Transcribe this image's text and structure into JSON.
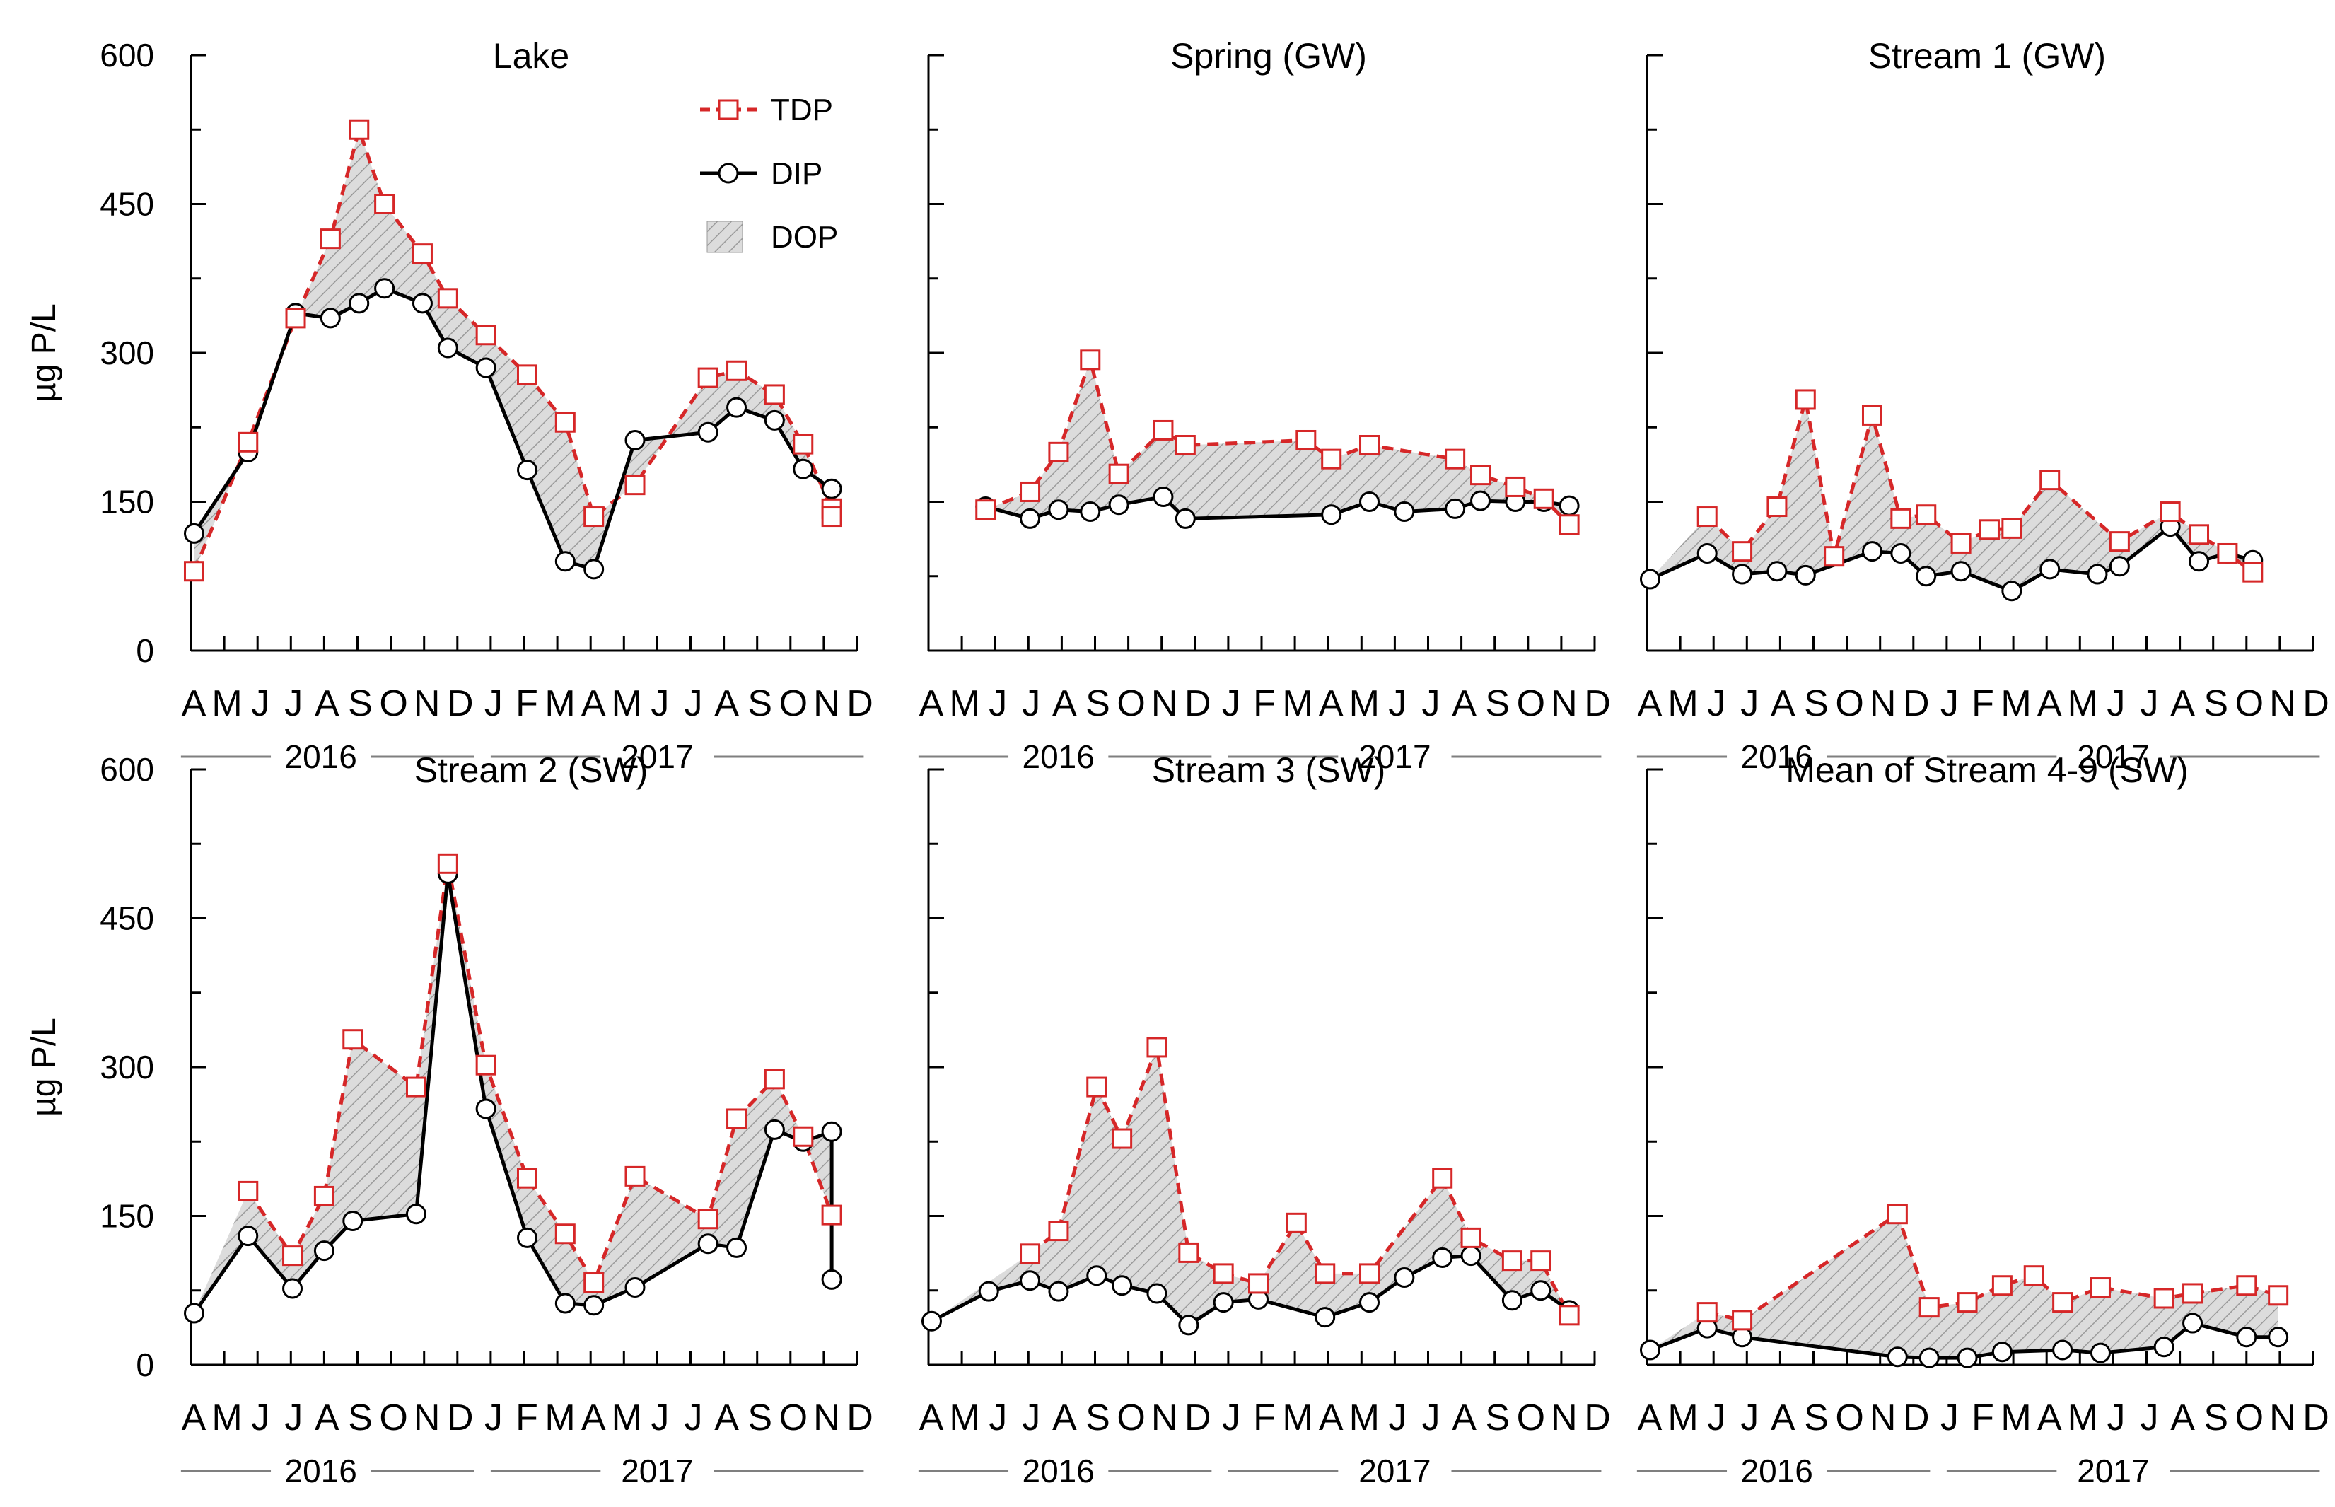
{
  "chart_data": {
    "type": "line",
    "ylabel": "µg P/L",
    "ylim": [
      0,
      600
    ],
    "yticks": [
      0,
      150,
      300,
      450,
      600
    ],
    "x_months": [
      "A",
      "M",
      "J",
      "J",
      "A",
      "S",
      "O",
      "N",
      "D",
      "J",
      "F",
      "M",
      "A",
      "M",
      "J",
      "J",
      "A",
      "S",
      "O",
      "N",
      "D"
    ],
    "x_start": "2016-04",
    "years": [
      "2016",
      "2017"
    ],
    "colors": {
      "tdp": "#d62728",
      "dip": "#000000",
      "dop_fill": "#dcdcdc",
      "dop_hatch": "#9a9a9a"
    },
    "legend": [
      {
        "key": "tdp",
        "label": "TDP"
      },
      {
        "key": "dip",
        "label": "DIP"
      },
      {
        "key": "dop",
        "label": "DOP"
      }
    ],
    "panels": [
      {
        "title": "Lake",
        "tdp": [
          [
            0.05,
            80
          ],
          [
            0.9,
            210
          ],
          [
            1.65,
            335
          ],
          [
            2.2,
            415
          ],
          [
            2.65,
            525
          ],
          [
            3.05,
            450
          ],
          [
            3.65,
            400
          ],
          [
            4.05,
            355
          ],
          [
            4.65,
            318
          ],
          [
            5.3,
            278
          ],
          [
            5.9,
            230
          ],
          [
            6.35,
            135
          ],
          [
            7.0,
            167
          ],
          [
            8.15,
            275
          ],
          [
            8.6,
            282
          ],
          [
            9.2,
            258
          ],
          [
            9.65,
            208
          ],
          [
            10.1,
            143
          ],
          [
            10.1,
            135
          ]
        ],
        "dip": [
          [
            0.05,
            118
          ],
          [
            0.9,
            200
          ],
          [
            1.65,
            340
          ],
          [
            2.2,
            335
          ],
          [
            2.65,
            350
          ],
          [
            3.05,
            365
          ],
          [
            3.65,
            350
          ],
          [
            4.05,
            305
          ],
          [
            4.65,
            285
          ],
          [
            5.3,
            182
          ],
          [
            5.9,
            90
          ],
          [
            6.35,
            82
          ],
          [
            7.0,
            212
          ],
          [
            8.15,
            220
          ],
          [
            8.6,
            245
          ],
          [
            9.2,
            232
          ],
          [
            9.65,
            183
          ],
          [
            10.1,
            163
          ]
        ]
      },
      {
        "title": "Spring (GW)",
        "tdp": [
          [
            0.9,
            142
          ],
          [
            1.6,
            160
          ],
          [
            2.05,
            200
          ],
          [
            2.55,
            293
          ],
          [
            3.0,
            178
          ],
          [
            3.7,
            222
          ],
          [
            4.05,
            207
          ],
          [
            5.95,
            212
          ],
          [
            6.35,
            193
          ],
          [
            6.95,
            207
          ],
          [
            8.3,
            193
          ],
          [
            8.7,
            177
          ],
          [
            9.25,
            165
          ],
          [
            9.7,
            153
          ],
          [
            10.1,
            127
          ]
        ],
        "dip": [
          [
            0.9,
            145
          ],
          [
            1.6,
            133
          ],
          [
            2.05,
            142
          ],
          [
            2.55,
            140
          ],
          [
            3.0,
            147
          ],
          [
            3.7,
            155
          ],
          [
            4.05,
            133
          ],
          [
            6.35,
            137
          ],
          [
            6.95,
            150
          ],
          [
            7.5,
            140
          ],
          [
            8.3,
            143
          ],
          [
            8.7,
            151
          ],
          [
            9.25,
            150
          ],
          [
            9.7,
            150
          ],
          [
            10.1,
            146
          ]
        ]
      },
      {
        "title": "Stream 1 (GW)",
        "tdp": [
          [
            0.95,
            135
          ],
          [
            1.5,
            100
          ],
          [
            2.05,
            145
          ],
          [
            2.5,
            253
          ],
          [
            2.95,
            95
          ],
          [
            3.55,
            237
          ],
          [
            4.0,
            133
          ],
          [
            4.4,
            137
          ],
          [
            4.95,
            108
          ],
          [
            5.4,
            122
          ],
          [
            5.75,
            123
          ],
          [
            6.35,
            172
          ],
          [
            7.45,
            110
          ],
          [
            8.25,
            140
          ],
          [
            8.7,
            117
          ],
          [
            9.15,
            98
          ],
          [
            9.55,
            79
          ]
        ],
        "dip": [
          [
            0.05,
            72
          ],
          [
            0.95,
            98
          ],
          [
            1.5,
            77
          ],
          [
            2.05,
            80
          ],
          [
            2.5,
            76
          ],
          [
            3.55,
            100
          ],
          [
            4.0,
            98
          ],
          [
            4.4,
            75
          ],
          [
            4.95,
            80
          ],
          [
            5.75,
            60
          ],
          [
            6.35,
            82
          ],
          [
            7.1,
            77
          ],
          [
            7.45,
            85
          ],
          [
            8.25,
            125
          ],
          [
            8.7,
            90
          ],
          [
            9.15,
            98
          ],
          [
            9.55,
            91
          ]
        ]
      },
      {
        "title": "Stream 2 (SW)",
        "tdp": [
          [
            0.9,
            175
          ],
          [
            1.6,
            110
          ],
          [
            2.1,
            170
          ],
          [
            2.55,
            328
          ],
          [
            3.55,
            280
          ],
          [
            4.05,
            505
          ],
          [
            4.65,
            302
          ],
          [
            5.3,
            188
          ],
          [
            5.9,
            132
          ],
          [
            6.35,
            83
          ],
          [
            7.0,
            190
          ],
          [
            8.15,
            147
          ],
          [
            8.6,
            248
          ],
          [
            9.2,
            288
          ],
          [
            9.65,
            230
          ],
          [
            10.1,
            151
          ]
        ],
        "dip": [
          [
            0.05,
            52
          ],
          [
            0.9,
            130
          ],
          [
            1.6,
            77
          ],
          [
            2.1,
            115
          ],
          [
            2.55,
            145
          ],
          [
            3.55,
            152
          ],
          [
            4.05,
            495
          ],
          [
            4.65,
            258
          ],
          [
            5.3,
            128
          ],
          [
            5.9,
            62
          ],
          [
            6.35,
            60
          ],
          [
            7.0,
            78
          ],
          [
            8.15,
            122
          ],
          [
            8.6,
            118
          ],
          [
            9.2,
            237
          ],
          [
            9.65,
            225
          ],
          [
            10.1,
            235
          ],
          [
            10.1,
            86
          ]
        ]
      },
      {
        "title": "Stream 3 (SW)",
        "tdp": [
          [
            1.6,
            112
          ],
          [
            2.05,
            135
          ],
          [
            2.65,
            280
          ],
          [
            3.05,
            228
          ],
          [
            3.6,
            320
          ],
          [
            4.1,
            113
          ],
          [
            4.65,
            92
          ],
          [
            5.2,
            82
          ],
          [
            5.8,
            143
          ],
          [
            6.25,
            92
          ],
          [
            6.95,
            92
          ],
          [
            8.1,
            188
          ],
          [
            8.55,
            128
          ],
          [
            9.2,
            105
          ],
          [
            9.65,
            105
          ],
          [
            10.1,
            50
          ]
        ],
        "dip": [
          [
            0.05,
            44
          ],
          [
            0.95,
            74
          ],
          [
            1.6,
            85
          ],
          [
            2.05,
            74
          ],
          [
            2.65,
            90
          ],
          [
            3.05,
            80
          ],
          [
            3.6,
            72
          ],
          [
            4.1,
            40
          ],
          [
            4.65,
            63
          ],
          [
            5.2,
            66
          ],
          [
            6.25,
            48
          ],
          [
            6.95,
            63
          ],
          [
            7.5,
            88
          ],
          [
            8.1,
            108
          ],
          [
            8.55,
            110
          ],
          [
            9.2,
            65
          ],
          [
            9.65,
            75
          ],
          [
            10.1,
            55
          ]
        ]
      },
      {
        "title": "Mean of Stream 4-9 (SW)",
        "tdp": [
          [
            0.95,
            53
          ],
          [
            1.5,
            45
          ],
          [
            3.95,
            152
          ],
          [
            4.45,
            58
          ],
          [
            5.05,
            63
          ],
          [
            5.6,
            80
          ],
          [
            6.1,
            90
          ],
          [
            6.55,
            63
          ],
          [
            7.15,
            78
          ],
          [
            8.15,
            67
          ],
          [
            8.6,
            72
          ],
          [
            9.45,
            80
          ],
          [
            9.95,
            70
          ]
        ],
        "dip": [
          [
            0.05,
            15
          ],
          [
            0.95,
            37
          ],
          [
            1.5,
            28
          ],
          [
            3.95,
            8
          ],
          [
            4.45,
            7
          ],
          [
            5.05,
            7
          ],
          [
            5.6,
            13
          ],
          [
            6.55,
            15
          ],
          [
            7.15,
            12
          ],
          [
            8.15,
            18
          ],
          [
            8.6,
            42
          ],
          [
            9.45,
            28
          ],
          [
            9.95,
            28
          ]
        ]
      }
    ]
  }
}
